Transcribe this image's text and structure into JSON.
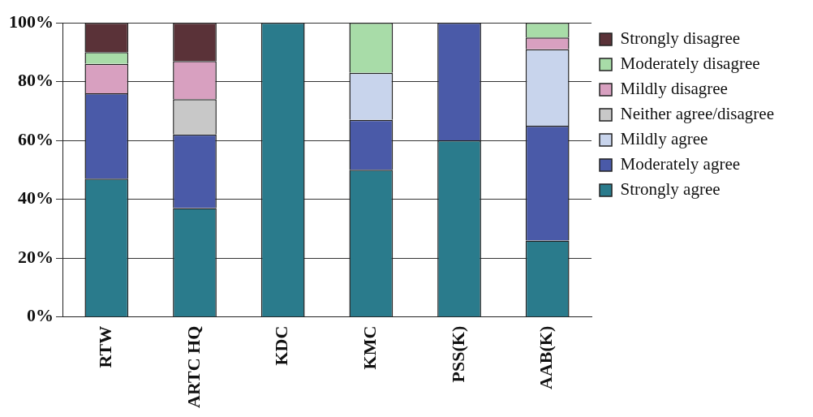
{
  "chart_data": {
    "type": "bar",
    "stacked": true,
    "categories": [
      "RTW",
      "ARTC HQ",
      "KDC",
      "KMC",
      "PSS(K)",
      "AAB(K)"
    ],
    "series": [
      {
        "name": "Strongly agree",
        "color": "#2a7b8c",
        "values": [
          47,
          37,
          100,
          50,
          60,
          26
        ]
      },
      {
        "name": "Moderately agree",
        "color": "#4a5aa8",
        "values": [
          29,
          25,
          0,
          17,
          40,
          39
        ]
      },
      {
        "name": "Mildly agree",
        "color": "#c8d4ec",
        "values": [
          0,
          0,
          0,
          16,
          0,
          26
        ]
      },
      {
        "name": "Neither agree/disagree",
        "color": "#c8c8c8",
        "values": [
          0,
          12,
          0,
          0,
          0,
          0
        ]
      },
      {
        "name": "Mildly disagree",
        "color": "#d8a0c0",
        "values": [
          10,
          13,
          0,
          0,
          0,
          4
        ]
      },
      {
        "name": "Moderately disagree",
        "color": "#a8dca8",
        "values": [
          4,
          0,
          0,
          17,
          0,
          5
        ]
      },
      {
        "name": "Strongly disagree",
        "color": "#5a3238",
        "values": [
          10,
          13,
          0,
          0,
          0,
          0
        ]
      }
    ],
    "ylim": [
      0,
      100
    ],
    "yticks": [
      {
        "value": 0,
        "label": "0%"
      },
      {
        "value": 20,
        "label": "20%"
      },
      {
        "value": 40,
        "label": "40%"
      },
      {
        "value": 60,
        "label": "60%"
      },
      {
        "value": 80,
        "label": "80%"
      },
      {
        "value": 100,
        "label": "100%"
      }
    ],
    "grid": "y",
    "legend": "right"
  }
}
